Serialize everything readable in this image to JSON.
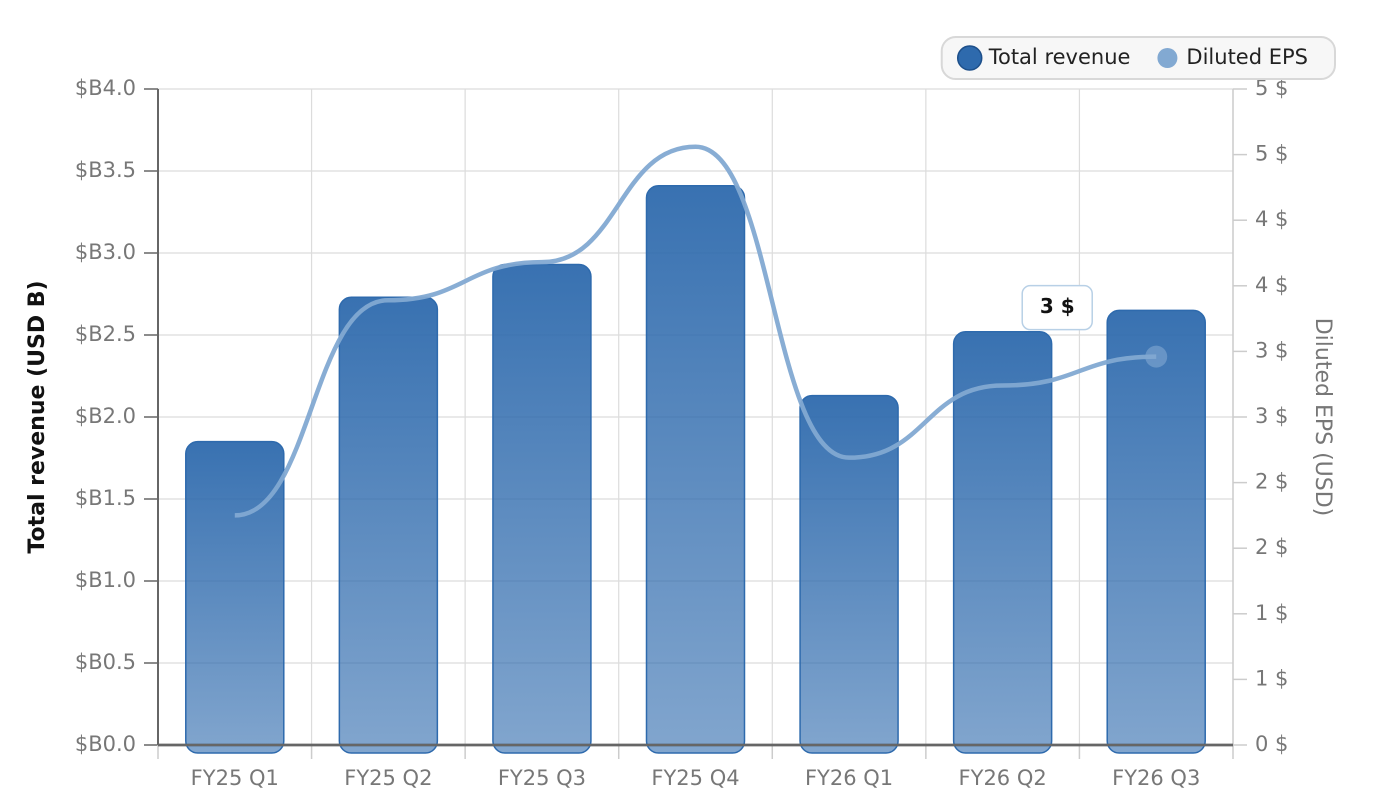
{
  "chart_data": {
    "type": "bar-line",
    "categories": [
      "FY25 Q1",
      "FY25 Q2",
      "FY25 Q3",
      "FY25 Q4",
      "FY26 Q1",
      "FY26 Q2",
      "FY26 Q3"
    ],
    "series": [
      {
        "name": "Total revenue",
        "color": "#2e6aad",
        "type": "bar",
        "values": [
          1.85,
          2.73,
          2.93,
          3.41,
          2.13,
          2.52,
          2.65
        ]
      },
      {
        "name": "Diluted EPS",
        "color": "#82a9d2",
        "type": "line",
        "axis": "y2",
        "values": [
          1.75,
          3.39,
          3.68,
          4.56,
          2.19,
          2.74,
          2.96
        ]
      }
    ],
    "ylabel": "Total revenue (USD B)",
    "y2label": "Diluted EPS (USD)",
    "ylim": [
      0,
      4
    ],
    "yticks": [
      {
        "value": 0,
        "label": "$B0.0"
      },
      {
        "value": 0.5,
        "label": "$B0.5"
      },
      {
        "value": 1,
        "label": "$B1.0"
      },
      {
        "value": 1.5,
        "label": "$B1.5"
      },
      {
        "value": 2,
        "label": "$B2.0"
      },
      {
        "value": 2.5,
        "label": "$B2.5"
      },
      {
        "value": 3,
        "label": "$B3.0"
      },
      {
        "value": 3.5,
        "label": "$B3.5"
      },
      {
        "value": 4,
        "label": "$B4.0"
      }
    ],
    "y2lim": [
      0,
      5
    ],
    "y2ticks": [
      {
        "value": 0,
        "label": "0 $"
      },
      {
        "value": 0.5,
        "label": "1 $"
      },
      {
        "value": 1,
        "label": "1 $"
      },
      {
        "value": 1.5,
        "label": "2 $"
      },
      {
        "value": 2,
        "label": "2 $"
      },
      {
        "value": 2.5,
        "label": "3 $"
      },
      {
        "value": 3,
        "label": "3 $"
      },
      {
        "value": 3.5,
        "label": "4 $"
      },
      {
        "value": 4,
        "label": "4 $"
      },
      {
        "value": 4.5,
        "label": "5 $"
      },
      {
        "value": 5,
        "label": "5 $"
      }
    ],
    "annotation": "3 $",
    "grid": true,
    "legend": "top-right"
  }
}
